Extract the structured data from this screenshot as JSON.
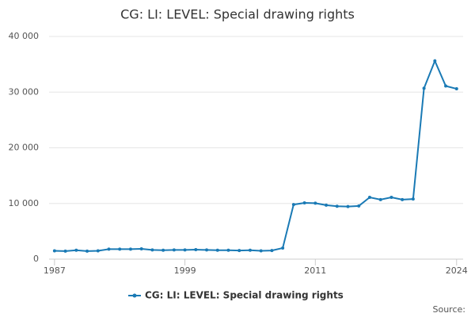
{
  "chart_data": {
    "type": "line",
    "title": "CG: LI: LEVEL: Special drawing rights",
    "source": "Source:",
    "x": [
      1987,
      1988,
      1989,
      1990,
      1991,
      1992,
      1993,
      1994,
      1995,
      1996,
      1997,
      1998,
      1999,
      2000,
      2001,
      2002,
      2003,
      2004,
      2005,
      2006,
      2007,
      2008,
      2009,
      2010,
      2011,
      2012,
      2013,
      2014,
      2015,
      2016,
      2017,
      2018,
      2019,
      2020,
      2021,
      2022,
      2023,
      2024
    ],
    "series": [
      {
        "name": "CG: LI: LEVEL: Special drawing rights",
        "color": "#1a7ab5",
        "values": [
          1500,
          1450,
          1600,
          1450,
          1500,
          1800,
          1800,
          1800,
          1850,
          1650,
          1600,
          1650,
          1650,
          1700,
          1650,
          1600,
          1600,
          1550,
          1600,
          1500,
          1550,
          2000,
          9800,
          10100,
          10050,
          9700,
          9500,
          9450,
          9550,
          11100,
          10700,
          11100,
          10700,
          10800,
          30700,
          35600,
          31100,
          30600
        ]
      }
    ],
    "xlim": [
      1986.5,
      2024.6
    ],
    "xticks": [
      1987,
      1999,
      2011,
      2024
    ],
    "ylim": [
      0,
      40000
    ],
    "yticks": [
      0,
      {
        "value": 10000,
        "label": "10 000"
      },
      {
        "value": 20000,
        "label": "20 000"
      },
      {
        "value": 30000,
        "label": "30 000"
      },
      {
        "value": 40000,
        "label": "40 000"
      }
    ],
    "grid": true
  }
}
